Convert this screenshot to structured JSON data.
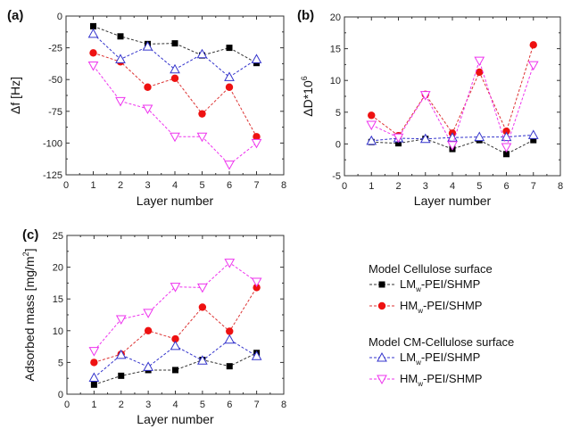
{
  "chart_data": [
    {
      "type": "line",
      "panel_label": "(a)",
      "xlabel": "Layer number",
      "ylabel": "Δf [Hz]",
      "xlim": [
        0,
        8
      ],
      "ylim": [
        -125,
        0
      ],
      "xticks": [
        0,
        1,
        2,
        3,
        4,
        5,
        6,
        7,
        8
      ],
      "yticks": [
        0,
        -25,
        -50,
        -75,
        -100,
        -125
      ],
      "x": [
        1,
        2,
        3,
        4,
        5,
        6,
        7
      ],
      "series": [
        {
          "name": "LMw-PEI/SHMP (Model Cellulose surface)",
          "key": "lm_cell",
          "values": [
            -8,
            -16,
            -22,
            -21.5,
            -31,
            -25,
            -37
          ]
        },
        {
          "name": "HMw-PEI/SHMP (Model Cellulose surface)",
          "key": "hm_cell",
          "values": [
            -29,
            -36,
            -56,
            -49,
            -77,
            -56,
            -95
          ]
        },
        {
          "name": "LMw-PEI/SHMP (Model CM-Cellulose surface)",
          "key": "lm_cm",
          "values": [
            -14,
            -34,
            -24,
            -42,
            -30,
            -48,
            -34
          ]
        },
        {
          "name": "HMw-PEI/SHMP (Model CM-Cellulose surface)",
          "key": "hm_cm",
          "values": [
            -39,
            -67,
            -73,
            -95,
            -95,
            -117,
            -100
          ]
        }
      ]
    },
    {
      "type": "line",
      "panel_label": "(b)",
      "xlabel": "Layer number",
      "ylabel": "ΔD*10",
      "ylabel_sup": "6",
      "xlim": [
        0,
        8
      ],
      "ylim": [
        -5,
        20
      ],
      "xticks": [
        0,
        1,
        2,
        3,
        4,
        5,
        6,
        7,
        8
      ],
      "yticks": [
        -5,
        0,
        5,
        10,
        15,
        20
      ],
      "x": [
        1,
        2,
        3,
        4,
        5,
        6,
        7
      ],
      "series": [
        {
          "name": "LMw-PEI/SHMP (Model Cellulose surface)",
          "key": "lm_cell",
          "values": [
            0.3,
            0.1,
            0.8,
            -0.8,
            0.6,
            -1.6,
            0.6
          ]
        },
        {
          "name": "HMw-PEI/SHMP (Model Cellulose surface)",
          "key": "hm_cell",
          "values": [
            4.5,
            1.3,
            7.8,
            1.7,
            11.3,
            2.0,
            15.6
          ]
        },
        {
          "name": "LMw-PEI/SHMP (Model CM-Cellulose surface)",
          "key": "lm_cm",
          "values": [
            0.5,
            0.9,
            0.8,
            1.0,
            1.1,
            1.1,
            1.4
          ]
        },
        {
          "name": "HMw-PEI/SHMP (Model CM-Cellulose surface)",
          "key": "hm_cm",
          "values": [
            3.0,
            1.0,
            7.7,
            -0.2,
            13.1,
            -0.5,
            12.4
          ]
        }
      ]
    },
    {
      "type": "line",
      "panel_label": "(c)",
      "xlabel": "Layer number",
      "ylabel": "Adsorbed mass [mg/m",
      "ylabel_sup": "2",
      "ylabel_end": "]",
      "xlim": [
        0,
        8
      ],
      "ylim": [
        0,
        25
      ],
      "xticks": [
        0,
        1,
        2,
        3,
        4,
        5,
        6,
        7,
        8
      ],
      "yticks": [
        0,
        5,
        10,
        15,
        20,
        25
      ],
      "x": [
        1,
        2,
        3,
        4,
        5,
        6,
        7
      ],
      "series": [
        {
          "name": "LMw-PEI/SHMP (Model Cellulose surface)",
          "key": "lm_cell",
          "values": [
            1.5,
            2.9,
            3.8,
            3.8,
            5.4,
            4.4,
            6.5
          ]
        },
        {
          "name": "HMw-PEI/SHMP (Model Cellulose surface)",
          "key": "hm_cell",
          "values": [
            5.0,
            6.3,
            10.0,
            8.7,
            13.7,
            9.9,
            16.8
          ]
        },
        {
          "name": "LMw-PEI/SHMP (Model CM-Cellulose surface)",
          "key": "lm_cm",
          "values": [
            2.6,
            6.2,
            4.3,
            7.6,
            5.3,
            8.6,
            6.0
          ]
        },
        {
          "name": "HMw-PEI/SHMP (Model CM-Cellulose surface)",
          "key": "hm_cm",
          "values": [
            6.8,
            11.8,
            12.8,
            16.9,
            16.8,
            20.7,
            17.7
          ]
        }
      ]
    }
  ],
  "series_styles": {
    "lm_cell": {
      "color": "#000000",
      "line_color": "#333333",
      "marker": "filled-square"
    },
    "hm_cell": {
      "color": "#ee1111",
      "line_color": "#dd3333",
      "marker": "filled-circle"
    },
    "lm_cm": {
      "color": "#3333cc",
      "line_color": "#3333cc",
      "marker": "open-triangle-up"
    },
    "hm_cm": {
      "color": "#ee33ee",
      "line_color": "#ee33ee",
      "marker": "open-triangle-down"
    }
  },
  "legend": {
    "groups": [
      {
        "title": "Model Cellulose surface",
        "entries": [
          {
            "key": "lm_cell",
            "prefix": "LM",
            "sub": "w",
            "suffix": "-PEI/SHMP"
          },
          {
            "key": "hm_cell",
            "prefix": "HM",
            "sub": "w",
            "suffix": "-PEI/SHMP"
          }
        ]
      },
      {
        "title": "Model CM-Cellulose surface",
        "entries": [
          {
            "key": "lm_cm",
            "prefix": "LM",
            "sub": "w",
            "suffix": "-PEI/SHMP"
          },
          {
            "key": "hm_cm",
            "prefix": "HM",
            "sub": "w",
            "suffix": "-PEI/SHMP"
          }
        ]
      }
    ]
  }
}
